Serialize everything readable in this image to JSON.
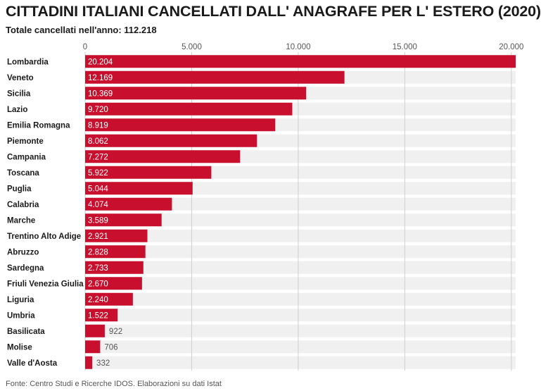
{
  "chart_data": {
    "type": "bar",
    "orientation": "horizontal",
    "title": "CITTADINI ITALIANI CANCELLATI DALL' ANAGRAFE PER L' ESTERO (2020)",
    "subtitle": "Totale cancellati nell'anno: 112.218",
    "source": "Fonte: Centro Studi e Ricerche IDOS. Elaborazioni su dati Istat",
    "categories": [
      "Lombardia",
      "Veneto",
      "Sicilia",
      "Lazio",
      "Emilia Romagna",
      "Piemonte",
      "Campania",
      "Toscana",
      "Puglia",
      "Calabria",
      "Marche",
      "Trentino Alto Adige",
      "Abruzzo",
      "Sardegna",
      "Friuli Venezia Giulia",
      "Liguria",
      "Umbria",
      "Basilicata",
      "Molise",
      "Valle d'Aosta"
    ],
    "values": [
      20204,
      12169,
      10369,
      9720,
      8919,
      8062,
      7272,
      5922,
      5044,
      4074,
      3589,
      2921,
      2828,
      2733,
      2670,
      2240,
      1522,
      922,
      706,
      332
    ],
    "value_labels": [
      "20.204",
      "12.169",
      "10.369",
      "9.720",
      "8.919",
      "8.062",
      "7.272",
      "5.922",
      "5.044",
      "4.074",
      "3.589",
      "2.921",
      "2.828",
      "2.733",
      "2.670",
      "2.240",
      "1.522",
      "922",
      "706",
      "332"
    ],
    "xlim": [
      0,
      20204
    ],
    "xticks": [
      0,
      5000,
      10000,
      15000,
      20000
    ],
    "xtick_labels": [
      "0",
      "5.000",
      "10.000",
      "15.000",
      "20.000"
    ],
    "tick_position": "top",
    "grid": true,
    "legend": "none",
    "colors": {
      "bar": "#c8102e",
      "track": "#f0f0f0",
      "grid": "#cfcfcf",
      "value_inside": "#ffffff",
      "value_outside": "#555555"
    }
  }
}
